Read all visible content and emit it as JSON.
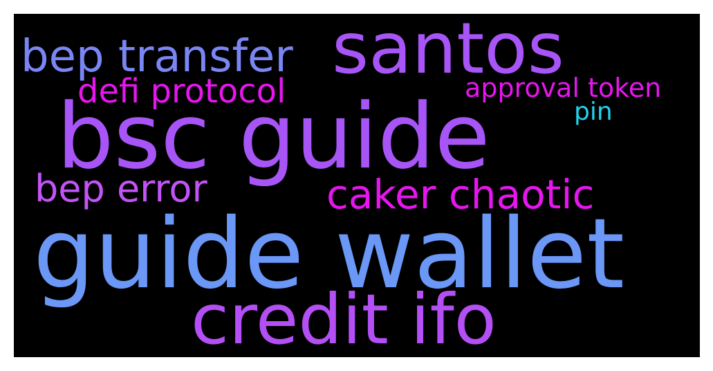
{
  "words": [
    {
      "text": "santos",
      "color": "#a855f7"
    },
    {
      "text": "bep transfer",
      "color": "#7b86f5"
    },
    {
      "text": "defi protocol",
      "color": "#e616ee"
    },
    {
      "text": "approval token",
      "color": "#e616ee"
    },
    {
      "text": "pin",
      "color": "#22d3ee"
    },
    {
      "text": "bsc guide",
      "color": "#a855f7"
    },
    {
      "text": "bep error",
      "color": "#c254f6"
    },
    {
      "text": "caker chaotic",
      "color": "#e616ee"
    },
    {
      "text": "guide wallet",
      "color": "#6b97f7"
    },
    {
      "text": "credit ifo",
      "color": "#b34ff5"
    }
  ]
}
